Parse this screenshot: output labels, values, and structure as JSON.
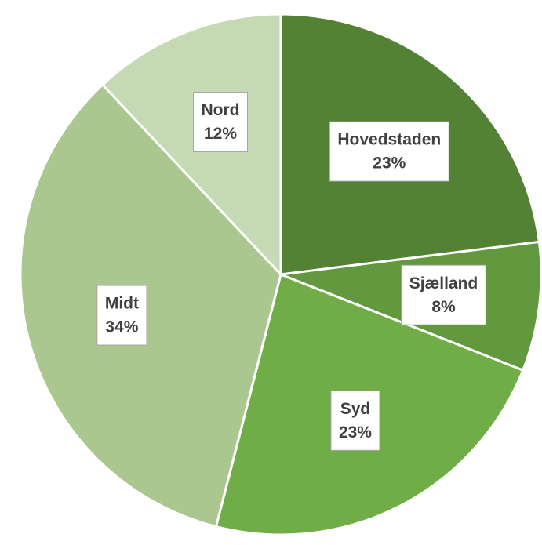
{
  "chart_data": {
    "type": "pie",
    "categories": [
      "Hovedstaden",
      "Sjælland",
      "Syd",
      "Midt",
      "Nord"
    ],
    "values": [
      23,
      8,
      23,
      34,
      12
    ],
    "value_labels": [
      "23%",
      "8%",
      "23%",
      "34%",
      "12%"
    ],
    "colors": [
      "#548235",
      "#62993e",
      "#70ad47",
      "#a9c78f",
      "#c5dab4"
    ]
  }
}
